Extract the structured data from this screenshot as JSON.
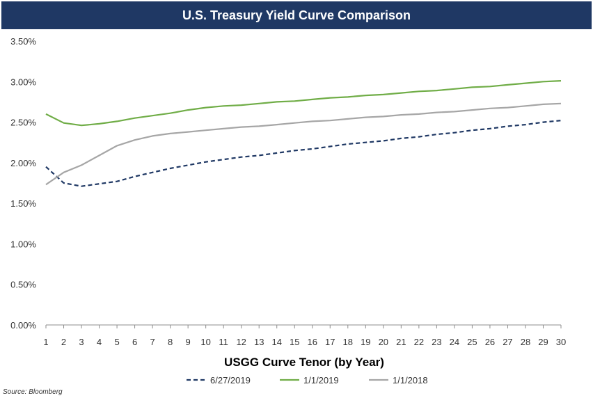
{
  "chart_data": {
    "type": "line",
    "title": "U.S. Treasury Yield Curve Comparison",
    "xlabel": "USGG Curve Tenor (by Year)",
    "ylabel": "",
    "source": "Source: Bloomberg",
    "x": [
      1,
      2,
      3,
      4,
      5,
      6,
      7,
      8,
      9,
      10,
      11,
      12,
      13,
      14,
      15,
      16,
      17,
      18,
      19,
      20,
      21,
      22,
      23,
      24,
      25,
      26,
      27,
      28,
      29,
      30
    ],
    "y_ticks": [
      "0.00%",
      "0.50%",
      "1.00%",
      "1.50%",
      "2.00%",
      "2.50%",
      "3.00%",
      "3.50%"
    ],
    "ylim": [
      0,
      3.5
    ],
    "grid": false,
    "legend_position": "bottom",
    "series": [
      {
        "name": "6/27/2019",
        "color": "#1f3864",
        "style": "dashed",
        "values": [
          1.95,
          1.75,
          1.71,
          1.74,
          1.77,
          1.83,
          1.88,
          1.93,
          1.97,
          2.01,
          2.04,
          2.07,
          2.09,
          2.12,
          2.15,
          2.17,
          2.2,
          2.23,
          2.25,
          2.27,
          2.3,
          2.32,
          2.35,
          2.37,
          2.4,
          2.42,
          2.45,
          2.47,
          2.5,
          2.52
        ]
      },
      {
        "name": "1/1/2019",
        "color": "#70ad47",
        "style": "solid",
        "values": [
          2.6,
          2.49,
          2.46,
          2.48,
          2.51,
          2.55,
          2.58,
          2.61,
          2.65,
          2.68,
          2.7,
          2.71,
          2.73,
          2.75,
          2.76,
          2.78,
          2.8,
          2.81,
          2.83,
          2.84,
          2.86,
          2.88,
          2.89,
          2.91,
          2.93,
          2.94,
          2.96,
          2.98,
          3.0,
          3.01
        ]
      },
      {
        "name": "1/1/2018",
        "color": "#a6a6a6",
        "style": "solid",
        "values": [
          1.73,
          1.88,
          1.97,
          2.09,
          2.21,
          2.28,
          2.33,
          2.36,
          2.38,
          2.4,
          2.42,
          2.44,
          2.45,
          2.47,
          2.49,
          2.51,
          2.52,
          2.54,
          2.56,
          2.57,
          2.59,
          2.6,
          2.62,
          2.63,
          2.65,
          2.67,
          2.68,
          2.7,
          2.72,
          2.73
        ]
      }
    ]
  }
}
